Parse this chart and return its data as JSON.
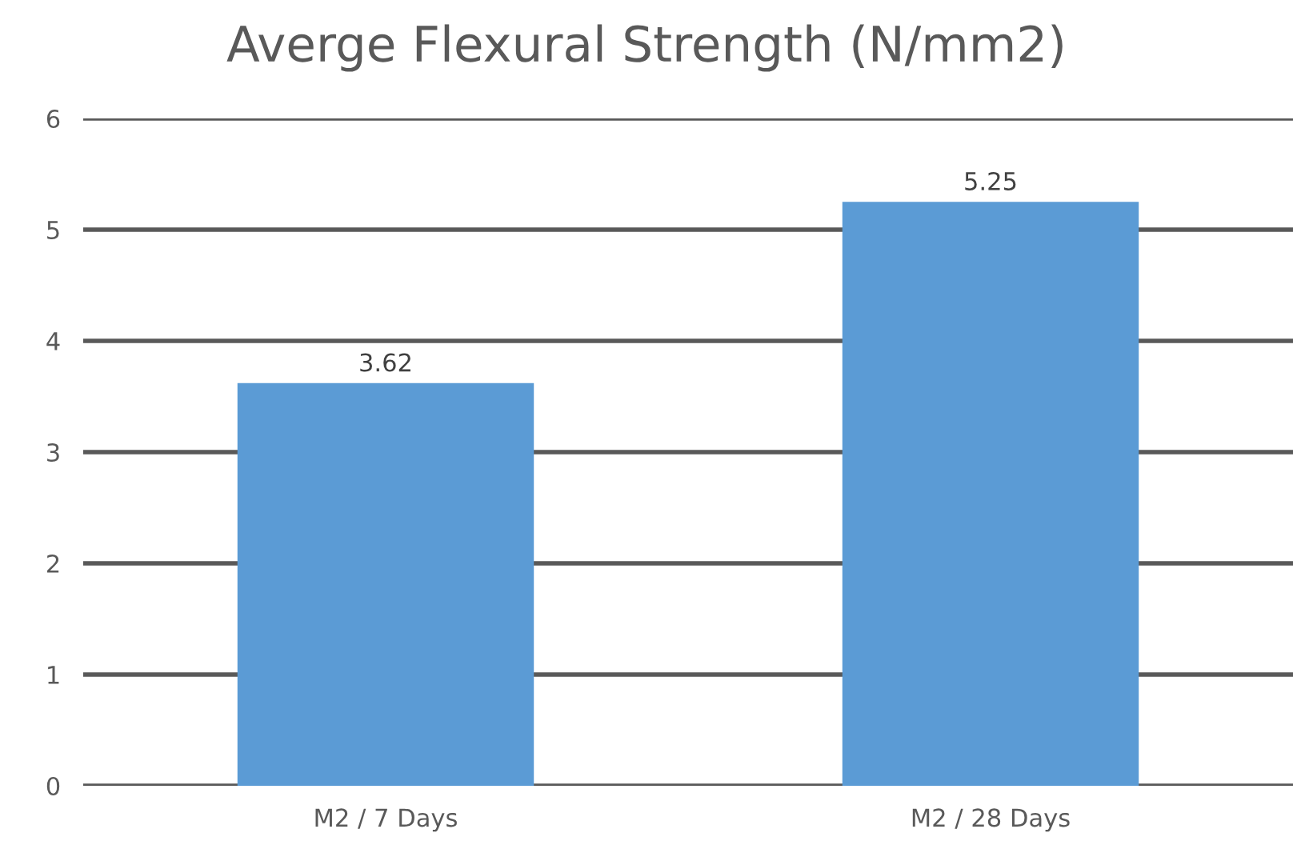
{
  "chart_data": {
    "type": "bar",
    "title": "Averge Flexural Strength (N/mm2)",
    "categories": [
      "M2 / 7 Days",
      "M2 / 28 Days"
    ],
    "values": [
      3.62,
      5.25
    ],
    "color": "#5b9bd5",
    "ylim": [
      0,
      6
    ],
    "yticks": [
      0,
      1,
      2,
      3,
      4,
      5,
      6
    ],
    "grid": "y",
    "data_labels": true
  }
}
